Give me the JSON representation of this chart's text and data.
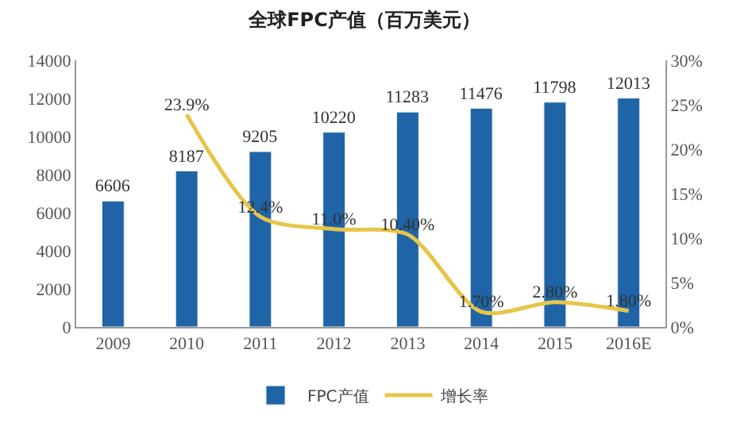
{
  "chart_data": {
    "type": "bar",
    "title": "全球FPC产值（百万美元）",
    "categories": [
      "2009",
      "2010",
      "2011",
      "2012",
      "2013",
      "2014",
      "2015",
      "2016E"
    ],
    "series": [
      {
        "name": "FPC产值",
        "color": "#1f64a6",
        "values": [
          6606,
          8187,
          9205,
          10220,
          11283,
          11476,
          11798,
          12013
        ],
        "value_labels": [
          "6606",
          "8187",
          "9205",
          "10220",
          "11283",
          "11476",
          "11798",
          "12013"
        ]
      },
      {
        "name": "增长率",
        "type": "line",
        "axis": "y2",
        "color": "#e6c54a",
        "values": [
          null,
          23.9,
          12.4,
          11.0,
          10.4,
          1.7,
          2.8,
          1.8
        ],
        "value_labels": [
          null,
          "23.9%",
          "12.4%",
          "11.0%",
          "10.40%",
          "1.70%",
          "2.80%",
          "1.80%"
        ]
      }
    ],
    "ylim": [
      0,
      14000
    ],
    "yticks": [
      0,
      2000,
      4000,
      6000,
      8000,
      10000,
      12000,
      14000
    ],
    "y2lim": [
      0,
      30
    ],
    "y2ticks": [
      {
        "value": 0,
        "label": "0%"
      },
      {
        "value": 5,
        "label": "5%"
      },
      {
        "value": 10,
        "label": "10%"
      },
      {
        "value": 15,
        "label": "15%"
      },
      {
        "value": 20,
        "label": "20%"
      },
      {
        "value": 25,
        "label": "25%"
      },
      {
        "value": 30,
        "label": "30%"
      }
    ],
    "legend": "bottom",
    "marker": "none",
    "line_style": "solid"
  }
}
